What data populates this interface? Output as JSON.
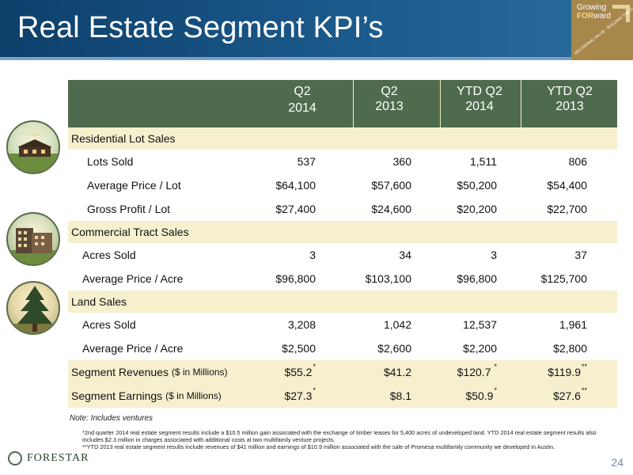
{
  "header": {
    "title": "Real Estate Segment KPI’s",
    "badge_line1": "Growing",
    "badge_line2_bold": "FOR",
    "badge_line2_rest": "ward",
    "badge_small": "DELIVERING VALUE · BUILDING THE FUTURE"
  },
  "table": {
    "columns": [
      {
        "line1": "Q2",
        "line2": "2014"
      },
      {
        "line1": "Q2",
        "line2": "2013"
      },
      {
        "line1": "YTD Q2",
        "line2": "2014"
      },
      {
        "line1": "YTD Q2",
        "line2": "2013"
      }
    ],
    "sections": {
      "residential": {
        "title": "Residential Lot Sales"
      },
      "commercial": {
        "title": "Commercial Tract Sales"
      },
      "land": {
        "title": "Land Sales"
      }
    },
    "rows": {
      "lots_sold": {
        "label": "Lots Sold",
        "v": [
          "537",
          "360",
          "1,511",
          "806"
        ]
      },
      "avg_price_lot": {
        "label": "Average Price / Lot",
        "v": [
          "$64,100",
          "$57,600",
          "$50,200",
          "$54,400"
        ]
      },
      "gross_profit_lot": {
        "label": "Gross Profit / Lot",
        "v": [
          "$27,400",
          "$24,600",
          "$20,200",
          "$22,700"
        ]
      },
      "comm_acres_sold": {
        "label": "Acres Sold",
        "v": [
          "3",
          "34",
          "3",
          "37"
        ]
      },
      "comm_avg_price_acre": {
        "label": "Average Price / Acre",
        "v": [
          "$96,800",
          "$103,100",
          "$96,800",
          "$125,700"
        ]
      },
      "land_acres_sold": {
        "label": "Acres Sold",
        "v": [
          "3,208",
          "1,042",
          "12,537",
          "1,961"
        ]
      },
      "land_avg_price_acre": {
        "label": "Average Price / Acre",
        "v": [
          "$2,500",
          "$2,600",
          "$2,200",
          "$2,800"
        ]
      }
    },
    "summary": {
      "revenues": {
        "label": "Segment Revenues",
        "unit": "($ in Millions)",
        "v": [
          "$55.2",
          "$41.2",
          "$120.7",
          "$119.9"
        ],
        "marks": [
          "*",
          "",
          "*",
          "**"
        ]
      },
      "earnings": {
        "label": "Segment Earnings",
        "unit": "($ in Millions)",
        "v": [
          "$27.3",
          "$8.1",
          "$50.9",
          "$27.6"
        ],
        "marks": [
          "*",
          "",
          "*",
          "**"
        ]
      }
    }
  },
  "notes": {
    "main": "Note: Includes ventures",
    "fn1": "*2nd quarter 2014 real estate segment results include a $10.5 million gain associated with the exchange of timber leases for 5,400 acres of undeveloped land. YTD 2014 real estate segment results also includes $2.3 million in charges associated with additional costs at two multifamily venture projects.",
    "fn2": "**YTD 2013 real estate segment results include revenues of $41 million and earnings of $10.9 million associated with the sale of Promesa multifamily community we developed in Austin."
  },
  "footer": {
    "logo_text": "FORESTAR",
    "page_number": "24"
  },
  "colors": {
    "header_blue": "#1b5a8c",
    "table_header_green": "#4f6b4e",
    "section_bg": "#f6f0cf",
    "badge_gold": "#a8874b"
  },
  "icons": [
    "house-icon",
    "building-icon",
    "tree-icon"
  ]
}
